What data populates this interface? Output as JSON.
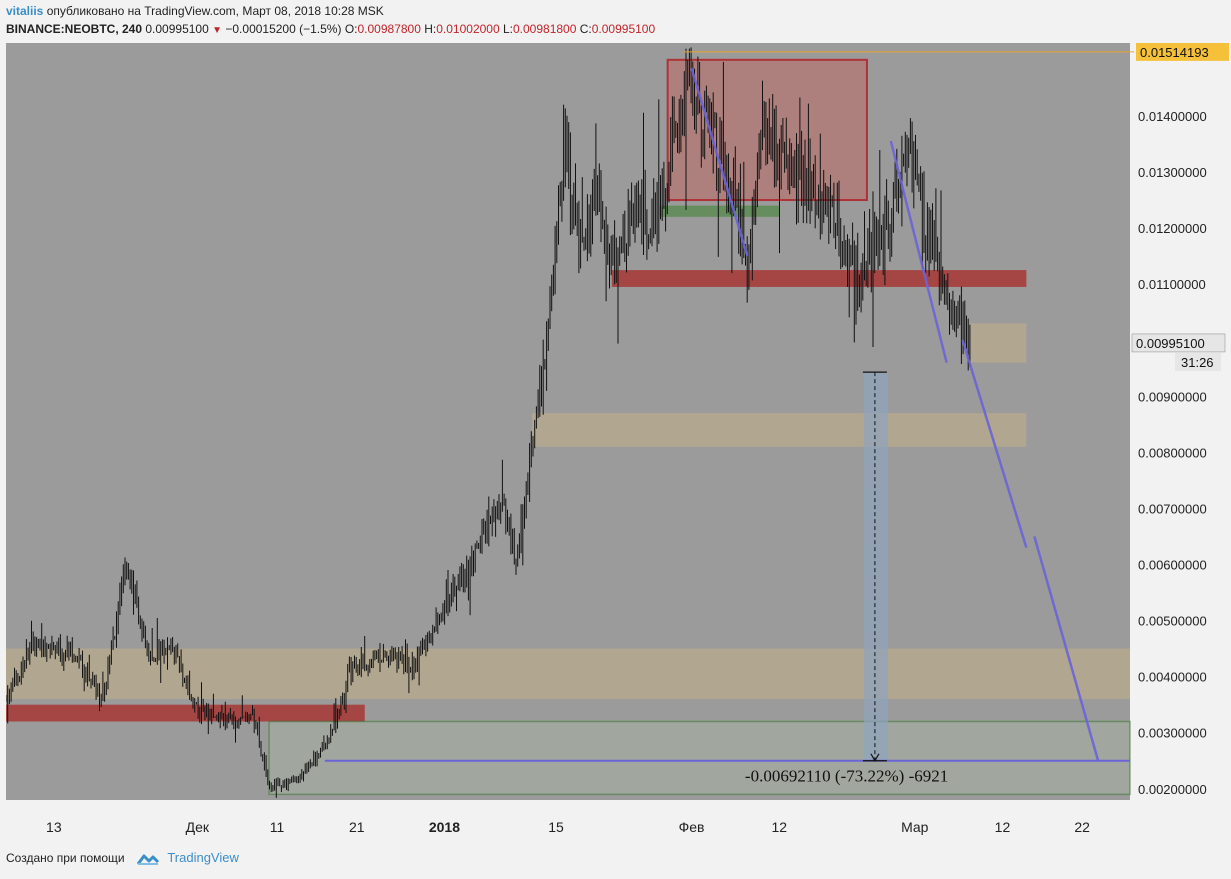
{
  "header": {
    "user": "vitaliis",
    "published_text": " опубликовано на TradingView.com, Март 08, 2018 10:28 MSK",
    "symbol": "BINANCE:NEOBTC, 240",
    "last": "0.00995100",
    "change": "−0.00015200 (−1.5%)",
    "o_label": "O:",
    "o_value": "0.00987800",
    "h_label": "H:",
    "h_value": "0.01002000",
    "l_label": "L:",
    "l_value": "0.00981800",
    "c_label": "C:",
    "c_value": "0.00995100"
  },
  "footer": {
    "created_with": "Создано при помощи",
    "brand": "TradingView"
  },
  "colors": {
    "chart_bg": "#9b9b9b",
    "axis_bg": "#f2f2f2",
    "candle": "#111111",
    "resistance_red": "#a5403f",
    "support_beige": "#b8aa8c",
    "green_zone": "#5f8c57",
    "trend_blue": "#6b64d8",
    "measure_blue": "#8fa4bf",
    "price_tag": "#f5c03a",
    "user_blue": "#3b8ec8"
  },
  "chart_data": {
    "type": "candlestick",
    "ylim": [
      0.0018,
      0.0153
    ],
    "y_scale": "linear",
    "y_ticks": [
      "0.00200000",
      "0.00300000",
      "0.00400000",
      "0.00500000",
      "0.00600000",
      "0.00700000",
      "0.00800000",
      "0.00900000",
      "0.01000000",
      "0.01100000",
      "0.01200000",
      "0.01300000",
      "0.01400000"
    ],
    "y_tick_values": [
      0.002,
      0.003,
      0.004,
      0.005,
      0.006,
      0.007,
      0.008,
      0.009,
      0.01,
      0.011,
      0.012,
      0.013,
      0.014
    ],
    "x_ticks": [
      {
        "label": "13",
        "date": "2017-11-13"
      },
      {
        "label": "Дек",
        "date": "2017-12-01"
      },
      {
        "label": "11",
        "date": "2017-12-11"
      },
      {
        "label": "21",
        "date": "2017-12-21"
      },
      {
        "label": "2018",
        "date": "2018-01-01",
        "bold": true
      },
      {
        "label": "15",
        "date": "2018-01-15"
      },
      {
        "label": "Фев",
        "date": "2018-02-01"
      },
      {
        "label": "12",
        "date": "2018-02-12"
      },
      {
        "label": "Мар",
        "date": "2018-03-01"
      },
      {
        "label": "12",
        "date": "2018-03-12"
      },
      {
        "label": "22",
        "date": "2018-03-22"
      }
    ],
    "xlim": [
      "2017-11-07",
      "2018-03-28"
    ],
    "price_path": [
      [
        "2017-11-07",
        0.0036
      ],
      [
        "2017-11-10",
        0.0045
      ],
      [
        "2017-11-16",
        0.0044
      ],
      [
        "2017-11-19",
        0.0035
      ],
      [
        "2017-11-22",
        0.006
      ],
      [
        "2017-11-25",
        0.0044
      ],
      [
        "2017-11-28",
        0.0045
      ],
      [
        "2017-12-01",
        0.0034
      ],
      [
        "2017-12-05",
        0.0032
      ],
      [
        "2017-12-08",
        0.0033
      ],
      [
        "2017-12-10",
        0.002
      ],
      [
        "2017-12-14",
        0.0022
      ],
      [
        "2017-12-18",
        0.003
      ],
      [
        "2017-12-20",
        0.0041
      ],
      [
        "2017-12-24",
        0.0044
      ],
      [
        "2017-12-28",
        0.0042
      ],
      [
        "2017-12-31",
        0.005
      ],
      [
        "2018-01-04",
        0.006
      ],
      [
        "2018-01-08",
        0.0071
      ],
      [
        "2018-01-10",
        0.0061
      ],
      [
        "2018-01-12",
        0.0082
      ],
      [
        "2018-01-14",
        0.01
      ],
      [
        "2018-01-16",
        0.0135
      ],
      [
        "2018-01-18",
        0.0115
      ],
      [
        "2018-01-20",
        0.0128
      ],
      [
        "2018-01-22",
        0.0113
      ],
      [
        "2018-01-25",
        0.0122
      ],
      [
        "2018-01-28",
        0.0123
      ],
      [
        "2018-01-31",
        0.0145
      ],
      [
        "2018-02-03",
        0.0138
      ],
      [
        "2018-02-06",
        0.013
      ],
      [
        "2018-02-08",
        0.011
      ],
      [
        "2018-02-10",
        0.014
      ],
      [
        "2018-02-13",
        0.013
      ],
      [
        "2018-02-16",
        0.0128
      ],
      [
        "2018-02-19",
        0.0121
      ],
      [
        "2018-02-22",
        0.0112
      ],
      [
        "2018-02-25",
        0.0118
      ],
      [
        "2018-02-28",
        0.0135
      ],
      [
        "2018-03-02",
        0.0122
      ],
      [
        "2018-03-05",
        0.0108
      ],
      [
        "2018-03-08",
        0.00995
      ]
    ],
    "last_price": {
      "value": 0.009951,
      "label": "0.00995100",
      "countdown": "31:26"
    },
    "marked_price": {
      "value": 0.01514193,
      "label": "0.01514193"
    },
    "resistance_box": {
      "x0": "2018-01-29",
      "x1": "2018-02-23",
      "y0": 0.0125,
      "y1": 0.015
    },
    "horizontal_zones": [
      {
        "kind": "resistance",
        "x0": "2017-11-07",
        "x1": "2017-12-22",
        "y0": 0.0032,
        "y1": 0.0035
      },
      {
        "kind": "resistance",
        "x0": "2018-01-22",
        "x1": "2018-03-15",
        "y0": 0.01095,
        "y1": 0.01125
      },
      {
        "kind": "support",
        "x0": "2017-11-07",
        "x1": "2018-03-28",
        "y0": 0.0036,
        "y1": 0.0045
      },
      {
        "kind": "support",
        "x0": "2018-01-12",
        "x1": "2018-03-15",
        "y0": 0.0081,
        "y1": 0.0087
      },
      {
        "kind": "support",
        "x0": "2018-03-08",
        "x1": "2018-03-15",
        "y0": 0.0096,
        "y1": 0.0103
      },
      {
        "kind": "green",
        "x0": "2018-01-28",
        "x1": "2018-02-12",
        "y0": 0.0122,
        "y1": 0.0124
      },
      {
        "kind": "target",
        "x0": "2017-12-10",
        "x1": "2018-03-28",
        "y0": 0.0019,
        "y1": 0.0032
      }
    ],
    "target_line": {
      "x0": "2017-12-17",
      "x1": "2018-03-28",
      "y": 0.0025
    },
    "trend_lines": [
      {
        "x0": "2018-02-01",
        "y0": 0.01485,
        "x1": "2018-02-08",
        "y1": 0.0115
      },
      {
        "x0": "2018-02-26",
        "y0": 0.01355,
        "x1": "2018-03-05",
        "y1": 0.0096
      },
      {
        "x0": "2018-03-07",
        "y0": 0.01,
        "x1": "2018-03-15",
        "y1": 0.0063
      },
      {
        "x0": "2018-03-16",
        "y0": 0.0065,
        "x1": "2018-03-24",
        "y1": 0.0025
      }
    ],
    "measure": {
      "x": "2018-02-24",
      "y_top": 0.00943,
      "y_bottom": 0.0025,
      "label": "-0.00692110 (-73.22%) -6921"
    }
  }
}
